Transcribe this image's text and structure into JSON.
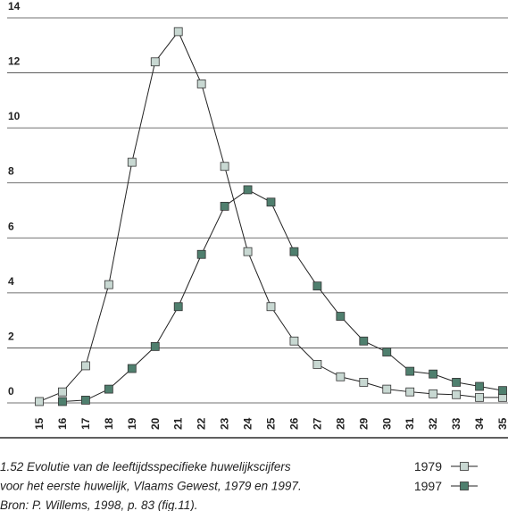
{
  "chart_data": {
    "type": "line",
    "categories": [
      "15",
      "16",
      "17",
      "18",
      "19",
      "20",
      "21",
      "22",
      "23",
      "24",
      "25",
      "26",
      "27",
      "28",
      "29",
      "30",
      "31",
      "32",
      "33",
      "34",
      "35"
    ],
    "series": [
      {
        "name": "1979",
        "color": "#c8d8d2",
        "values": [
          0.05,
          0.4,
          1.35,
          4.3,
          8.75,
          12.4,
          13.5,
          11.6,
          8.6,
          5.5,
          3.5,
          2.25,
          1.4,
          0.95,
          0.75,
          0.5,
          0.4,
          0.33,
          0.3,
          0.2,
          0.2
        ]
      },
      {
        "name": "1997",
        "color": "#4f7f6e",
        "values": [
          null,
          0.05,
          0.1,
          0.5,
          1.25,
          2.05,
          3.5,
          5.4,
          7.15,
          7.75,
          7.3,
          5.5,
          4.25,
          3.15,
          2.25,
          1.85,
          1.15,
          1.05,
          0.75,
          0.6,
          0.45
        ]
      }
    ],
    "ylim": [
      0,
      14
    ],
    "yticks": [
      0,
      2,
      4,
      6,
      8,
      10,
      12,
      14
    ],
    "grid": true,
    "caption": [
      "1.52  Evolutie van de leeftijdsspecifieke huwelijkscijfers",
      "voor het eerste huwelijk, Vlaams Gewest, 1979 en 1997.",
      "Bron: P. Willems, 1998, p. 83 (fig.11)."
    ]
  }
}
